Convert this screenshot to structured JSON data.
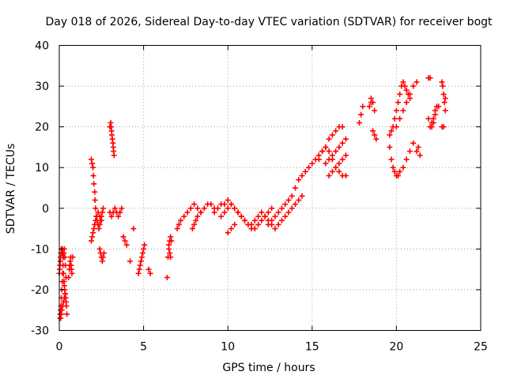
{
  "chart_data": {
    "type": "scatter",
    "title": "Day 018 of 2026, Sidereal Day-to-day VTEC variation (SDTVAR) for receiver bogt",
    "xlabel": "GPS time / hours",
    "ylabel": "SDTVAR / TECUs",
    "xlim": [
      0,
      25
    ],
    "ylim": [
      -30,
      40
    ],
    "xticks": [
      "0",
      "5",
      "10",
      "15",
      "20",
      "25"
    ],
    "yticks": [
      "-30",
      "-20",
      "-10",
      "0",
      "10",
      "20",
      "30",
      "40"
    ],
    "grid": true,
    "marker": "+",
    "marker_color": "#ff0000",
    "series": [
      {
        "name": "SDTVAR",
        "x": [
          0.0,
          0.02,
          0.04,
          0.06,
          0.08,
          0.1,
          0.12,
          0.14,
          0.16,
          0.18,
          0.2,
          0.22,
          0.25,
          0.28,
          0.3,
          0.32,
          0.35,
          0.38,
          0.4,
          0.42,
          0.45,
          0.05,
          0.08,
          0.1,
          0.12,
          0.15,
          0.18,
          0.2,
          0.22,
          0.25,
          0.28,
          0.3,
          0.33,
          0.36,
          0.4,
          0.05,
          0.08,
          0.12,
          0.15,
          0.2,
          0.25,
          0.3,
          0.35,
          0.55,
          0.6,
          0.62,
          0.65,
          0.68,
          0.7,
          0.72,
          0.75,
          0.8,
          1.9,
          1.95,
          2.0,
          2.02,
          2.05,
          2.1,
          2.12,
          2.15,
          2.2,
          2.25,
          2.3,
          2.35,
          2.4,
          2.45,
          2.5,
          2.55,
          2.6,
          1.9,
          1.95,
          2.0,
          2.05,
          2.1,
          2.15,
          2.2,
          2.3,
          2.4,
          2.5,
          2.4,
          2.45,
          2.5,
          2.55,
          2.6,
          2.65,
          3.0,
          3.05,
          3.08,
          3.1,
          3.12,
          3.15,
          3.18,
          3.2,
          3.22,
          3.25,
          3.0,
          3.1,
          3.2,
          3.3,
          3.4,
          3.5,
          3.6,
          3.7,
          3.8,
          3.9,
          4.0,
          4.2,
          4.4,
          4.7,
          4.75,
          4.8,
          4.85,
          4.9,
          4.95,
          5.0,
          5.05,
          5.3,
          5.4,
          6.4,
          6.45,
          6.5,
          6.55,
          6.6,
          6.65,
          6.5,
          6.55,
          6.6,
          7.0,
          7.1,
          7.2,
          7.4,
          7.6,
          7.8,
          8.0,
          8.2,
          8.4,
          7.9,
          8.0,
          8.1,
          8.2,
          8.4,
          8.6,
          8.8,
          9.0,
          9.2,
          9.2,
          9.4,
          9.6,
          9.8,
          10.0,
          10.2,
          10.4,
          10.6,
          10.8,
          11.0,
          11.2,
          11.4,
          11.6,
          11.8,
          12.0,
          12.2,
          12.4,
          12.6,
          9.6,
          9.8,
          10.0,
          10.2,
          10.4,
          10.6,
          10.8,
          11.0,
          11.2,
          11.4,
          11.6,
          11.8,
          12.0,
          12.2,
          12.4,
          12.6,
          12.8,
          10.0,
          10.2,
          10.4,
          12.4,
          12.6,
          12.8,
          13.0,
          13.2,
          13.4,
          13.6,
          13.8,
          14.0,
          14.2,
          14.4,
          14.6,
          14.8,
          15.0,
          15.2,
          15.4,
          15.6,
          15.8,
          16.0,
          16.2,
          16.4,
          16.6,
          16.8,
          13.0,
          13.2,
          13.4,
          13.6,
          13.8,
          14.0,
          14.2,
          14.4,
          15.4,
          15.6,
          15.8,
          16.0,
          16.2,
          16.4,
          16.6,
          16.8,
          17.0,
          15.8,
          16.0,
          16.2,
          16.4,
          16.6,
          16.8,
          17.0,
          16.0,
          16.2,
          16.4,
          16.6,
          16.8,
          17.0,
          17.8,
          17.9,
          18.0,
          18.4,
          18.5,
          18.6,
          18.7,
          18.8,
          18.5,
          18.6,
          18.7,
          19.6,
          19.7,
          19.8,
          19.9,
          20.0,
          20.1,
          20.2,
          20.4,
          20.6,
          20.8,
          21.0,
          21.2,
          19.6,
          19.7,
          19.8,
          19.9,
          20.0,
          20.1,
          20.2,
          20.3,
          20.0,
          20.2,
          20.4,
          20.6,
          20.8,
          21.0,
          21.2,
          20.4,
          20.5,
          20.6,
          20.7,
          20.8,
          21.3,
          21.4,
          21.9,
          22.0,
          22.1,
          22.2,
          22.3,
          22.4,
          21.9,
          22.0,
          22.1,
          22.2,
          22.3,
          22.5,
          22.7,
          22.75,
          22.8,
          22.85,
          22.9,
          22.7,
          22.8,
          22.9
        ],
        "y": [
          -16,
          -15,
          -14,
          -13,
          -12,
          -11,
          -10,
          -10,
          -11,
          -10,
          -11,
          -12,
          -16,
          -18,
          -19,
          -20,
          -21,
          -22,
          -23,
          -24,
          -26,
          -26,
          -25,
          -24,
          -22,
          -20,
          -18,
          -16,
          -14,
          -12,
          -11,
          -10,
          -12,
          -14,
          -17,
          -27,
          -27,
          -26,
          -25,
          -24,
          -23,
          -22,
          -21,
          -17,
          -15,
          -14,
          -13,
          -12,
          -14,
          -15,
          -16,
          -12,
          12,
          11,
          10,
          8,
          6,
          4,
          2,
          0,
          -2,
          -3,
          -4,
          -5,
          -4,
          -3,
          -2,
          -1,
          0,
          -8,
          -7,
          -6,
          -5,
          -4,
          -3,
          -2,
          -1,
          -2,
          -3,
          -10,
          -11,
          -12,
          -13,
          -12,
          -11,
          20,
          21,
          20,
          19,
          18,
          17,
          16,
          15,
          14,
          13,
          -1,
          -2,
          -1,
          0,
          -1,
          -2,
          -1,
          0,
          -7,
          -8,
          -9,
          -13,
          -5,
          -16,
          -15,
          -14,
          -13,
          -12,
          -11,
          -10,
          -9,
          -15,
          -16,
          -17,
          -12,
          -10,
          -8,
          -7,
          -8,
          -9,
          -11,
          -12,
          -5,
          -4,
          -3,
          -2,
          -1,
          0,
          1,
          0,
          -1,
          -5,
          -4,
          -3,
          -2,
          -1,
          0,
          1,
          1,
          0,
          -1,
          0,
          1,
          1,
          2,
          1,
          0,
          -1,
          -2,
          -3,
          -4,
          -5,
          -5,
          -4,
          -3,
          -2,
          -1,
          0,
          -2,
          -1,
          0,
          1,
          0,
          -1,
          -2,
          -3,
          -4,
          -4,
          -3,
          -2,
          -1,
          -2,
          -3,
          -4,
          -5,
          -6,
          -5,
          -4,
          -4,
          -3,
          -2,
          -1,
          0,
          1,
          2,
          3,
          5,
          7,
          8,
          9,
          10,
          11,
          12,
          13,
          14,
          15,
          17,
          18,
          19,
          20,
          20,
          -4,
          -3,
          -2,
          -1,
          0,
          1,
          2,
          3,
          12,
          14,
          15,
          14,
          12,
          10,
          9,
          8,
          8,
          11,
          12,
          13,
          14,
          15,
          16,
          17,
          8,
          9,
          10,
          11,
          12,
          13,
          21,
          23,
          25,
          25,
          26,
          19,
          18,
          17,
          27,
          26,
          24,
          15,
          12,
          10,
          9,
          8,
          8,
          9,
          10,
          12,
          14,
          16,
          14,
          18,
          19,
          20,
          22,
          24,
          26,
          28,
          30,
          20,
          22,
          24,
          26,
          28,
          30,
          31,
          31,
          30,
          29,
          28,
          27,
          15,
          13,
          32,
          32,
          21,
          22,
          23,
          25,
          22,
          20,
          20,
          21,
          24,
          25,
          31,
          30,
          28,
          26,
          24,
          20,
          20,
          27
        ]
      }
    ]
  }
}
